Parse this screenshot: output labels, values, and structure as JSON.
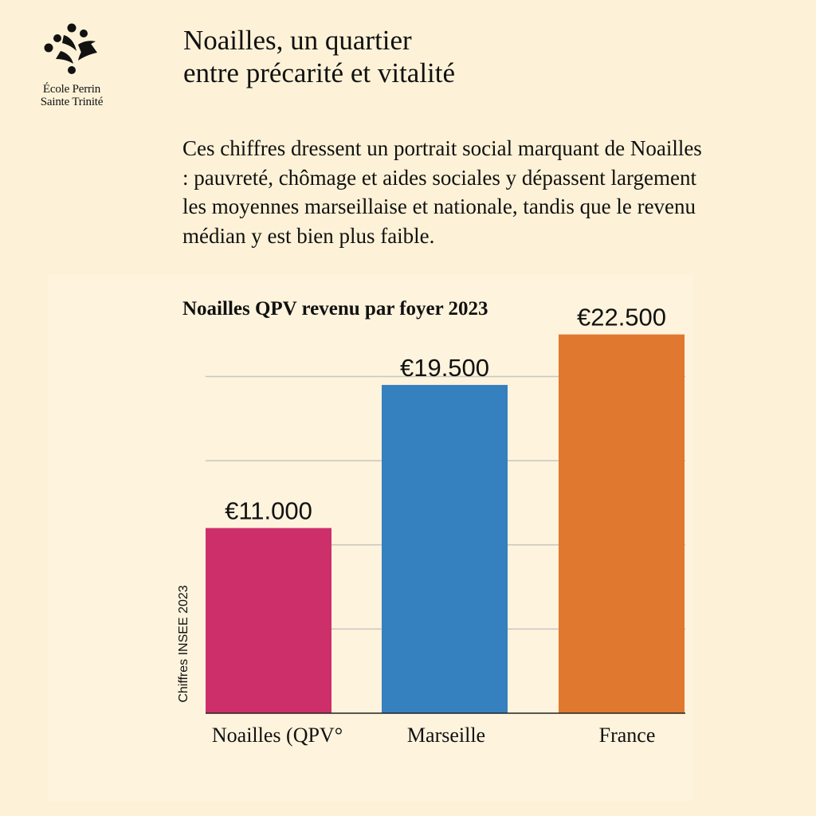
{
  "brand": {
    "line1": "École Perrin",
    "line2": "Sainte Trinité"
  },
  "header": {
    "title_line1": "Noailles, un quartier",
    "title_line2": "entre précarité et vitalité"
  },
  "lead": {
    "text": "Ces chiffres dressent un portrait social marquant de Noailles : pauvreté, chômage et aides sociales y dépassent largement les moyennes marseillaise et nationale, tandis que le revenu médian y est bien plus faible."
  },
  "chart_data": {
    "type": "bar",
    "title": "Noailles QPV revenu par foyer 2023",
    "xlabel": "",
    "ylabel": "Chiffres INSEE 2023",
    "categories": [
      "Noailles (QPV°",
      "Marseille",
      "France"
    ],
    "values": [
      11000,
      19500,
      22500
    ],
    "value_labels": [
      "€11.000",
      "€19.500",
      "€22.500"
    ],
    "colors": [
      "#cc2f6a",
      "#3580bf",
      "#e07830"
    ],
    "ylim": [
      0,
      24000
    ],
    "grid": true,
    "legend": "none"
  }
}
